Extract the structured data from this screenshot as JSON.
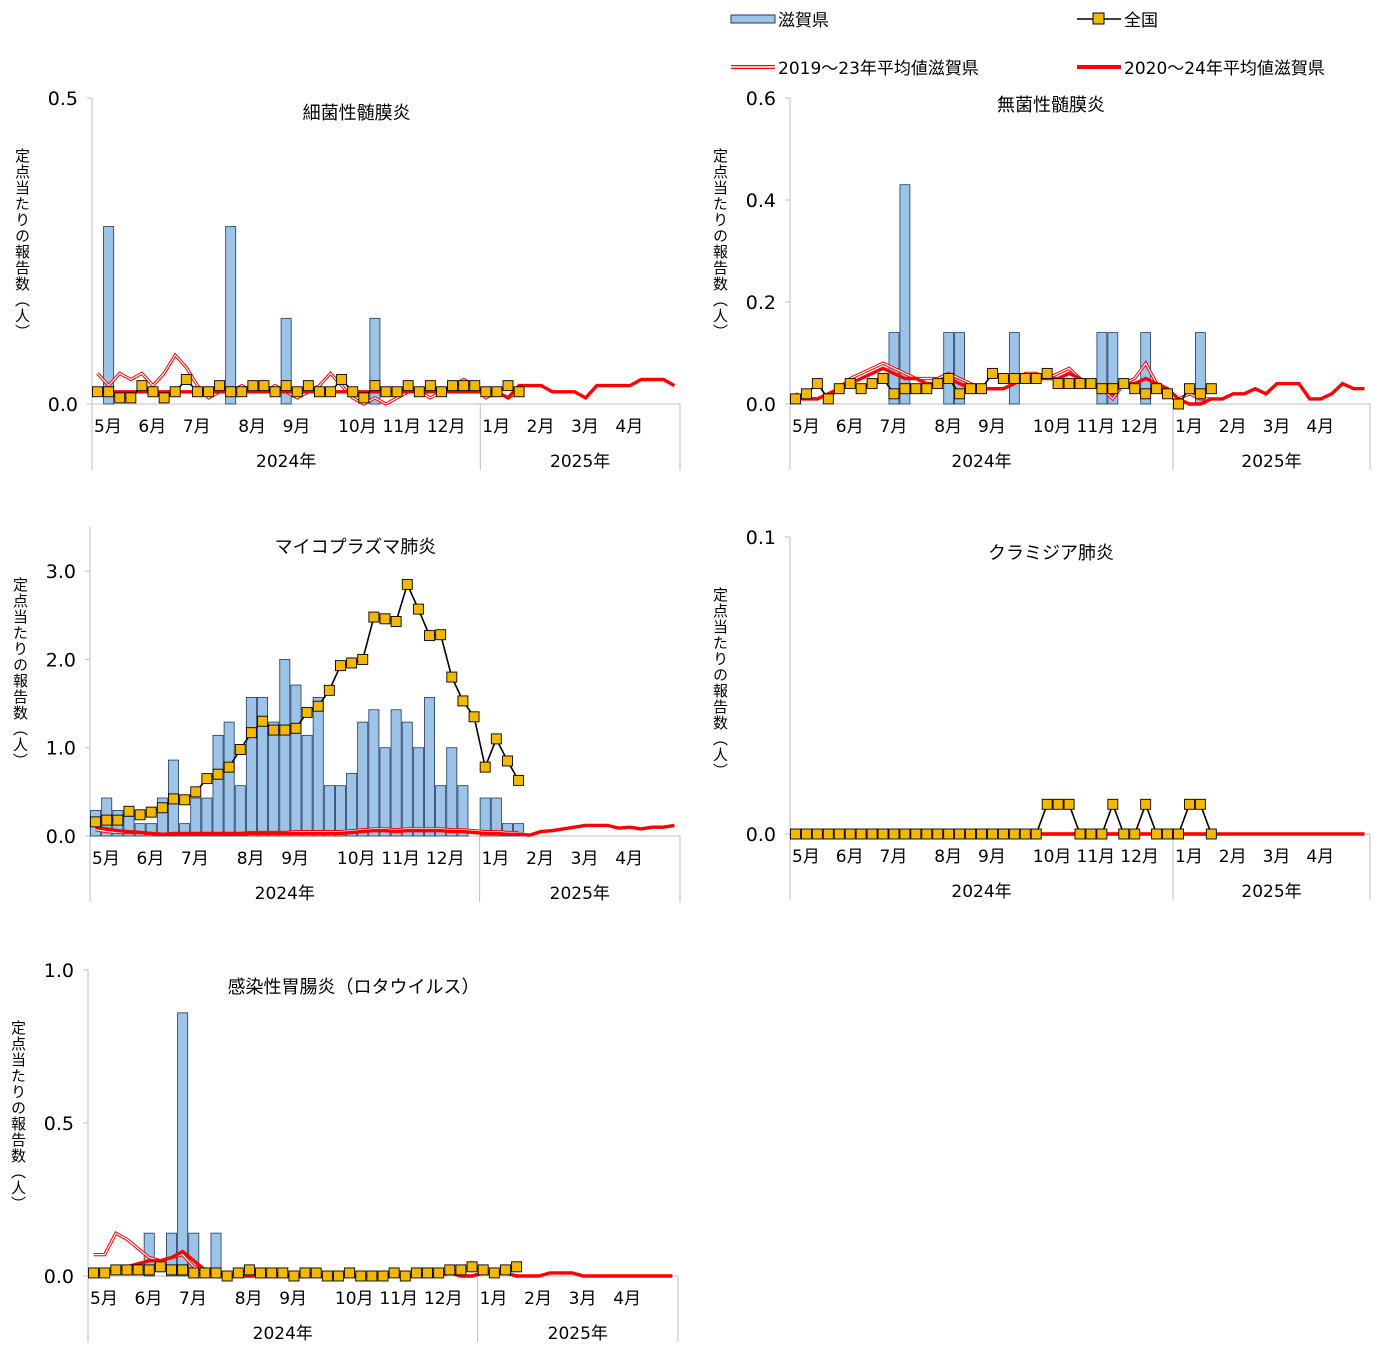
{
  "legend": {
    "items": [
      {
        "label": "滋賀県",
        "kind": "bar"
      },
      {
        "label": "全国",
        "kind": "marker"
      },
      {
        "label": "2019～23年平均値滋賀県",
        "kind": "double"
      },
      {
        "label": "2020～24年平均値滋賀県",
        "kind": "thick"
      }
    ]
  },
  "colors": {
    "bar_fill": "#9dc3e6",
    "bar_stroke": "#1f3864",
    "national_marker": "#f5b800",
    "national_line": "#000000",
    "avg_red": "#ff0000",
    "axis": "#bfbfbf"
  },
  "chart_data": [
    {
      "type": "bar",
      "title": "細菌性髄膜炎",
      "ylabel": "定点当たりの報告数（人）",
      "ylim": [
        0,
        0.5
      ],
      "yticks": [
        "0.0",
        "0.5"
      ],
      "month_labels": [
        "5月",
        "6月",
        "7月",
        "8月",
        "9月",
        "10月",
        "11月",
        "12月",
        "1月",
        "2月",
        "3月",
        "4月"
      ],
      "year_labels": [
        "2024年",
        "2025年"
      ],
      "shiga": [
        0,
        0.29,
        0,
        0,
        0,
        0,
        0,
        0,
        0,
        0,
        0,
        0,
        0.29,
        0,
        0,
        0,
        0,
        0.14,
        0,
        0,
        0,
        0,
        0,
        0,
        0,
        0.14,
        0,
        0,
        0,
        0,
        0,
        0,
        0,
        0,
        0,
        0,
        0,
        0,
        0,
        0,
        0,
        0,
        0,
        0,
        0,
        0,
        0,
        0,
        0,
        0,
        0,
        0,
        0
      ],
      "national": [
        0.02,
        0.02,
        0.01,
        0.01,
        0.03,
        0.02,
        0.01,
        0.02,
        0.04,
        0.02,
        0.02,
        0.03,
        0.02,
        0.02,
        0.03,
        0.03,
        0.02,
        0.03,
        0.02,
        0.03,
        0.02,
        0.02,
        0.04,
        0.02,
        0.01,
        0.03,
        0.02,
        0.02,
        0.03,
        0.02,
        0.03,
        0.02,
        0.03,
        0.03,
        0.03,
        0.02,
        0.02,
        0.03,
        0.02
      ],
      "avg1923": [
        0.05,
        0.03,
        0.05,
        0.04,
        0.05,
        0.03,
        0.05,
        0.08,
        0.06,
        0.03,
        0.01,
        0.02,
        0.02,
        0.03,
        0.02,
        0.02,
        0.03,
        0.02,
        0.01,
        0.02,
        0.03,
        0.05,
        0.03,
        0.01,
        0.0,
        0.01,
        0.0,
        0.01,
        0.02,
        0.02,
        0.01,
        0.02,
        0.03,
        0.04,
        0.03,
        0.01,
        0.02,
        0.01,
        0.02
      ],
      "avg2024": [
        0.02,
        0.02,
        0.02,
        0.02,
        0.02,
        0.02,
        0.02,
        0.02,
        0.02,
        0.02,
        0.02,
        0.02,
        0.02,
        0.02,
        0.02,
        0.02,
        0.02,
        0.02,
        0.02,
        0.02,
        0.02,
        0.02,
        0.02,
        0.02,
        0.02,
        0.02,
        0.02,
        0.02,
        0.02,
        0.02,
        0.02,
        0.02,
        0.02,
        0.02,
        0.02,
        0.02,
        0.02,
        0.01,
        0.03,
        0.03,
        0.03,
        0.02,
        0.02,
        0.02,
        0.01,
        0.03,
        0.03,
        0.03,
        0.03,
        0.04,
        0.04,
        0.04,
        0.03
      ]
    },
    {
      "type": "bar",
      "title": "無菌性髄膜炎",
      "ylabel": "定点当たりの報告数（人）",
      "ylim": [
        0,
        0.6
      ],
      "yticks": [
        "0.0",
        "0.2",
        "0.4",
        "0.6"
      ],
      "month_labels": [
        "5月",
        "6月",
        "7月",
        "8月",
        "9月",
        "10月",
        "11月",
        "12月",
        "1月",
        "2月",
        "3月",
        "4月"
      ],
      "year_labels": [
        "2024年",
        "2025年"
      ],
      "shiga": [
        0,
        0,
        0,
        0,
        0,
        0,
        0,
        0,
        0,
        0.14,
        0.43,
        0,
        0,
        0,
        0.14,
        0.14,
        0,
        0,
        0,
        0,
        0.14,
        0,
        0,
        0,
        0,
        0,
        0,
        0,
        0.14,
        0.14,
        0,
        0,
        0.14,
        0,
        0,
        0,
        0,
        0.14,
        0,
        0,
        0,
        0,
        0,
        0,
        0,
        0,
        0,
        0,
        0,
        0,
        0,
        0,
        0
      ],
      "national": [
        0.01,
        0.02,
        0.04,
        0.01,
        0.03,
        0.04,
        0.03,
        0.04,
        0.05,
        0.02,
        0.03,
        0.03,
        0.03,
        0.04,
        0.05,
        0.02,
        0.03,
        0.03,
        0.06,
        0.05,
        0.05,
        0.05,
        0.05,
        0.06,
        0.04,
        0.04,
        0.04,
        0.04,
        0.03,
        0.03,
        0.04,
        0.03,
        0.02,
        0.03,
        0.02,
        0.0,
        0.03,
        0.02,
        0.03
      ],
      "avg1923": [
        0.02,
        0.01,
        0.01,
        0.02,
        0.03,
        0.05,
        0.06,
        0.07,
        0.08,
        0.07,
        0.06,
        0.05,
        0.05,
        0.05,
        0.06,
        0.05,
        0.04,
        0.03,
        0.03,
        0.03,
        0.04,
        0.06,
        0.06,
        0.05,
        0.06,
        0.07,
        0.05,
        0.04,
        0.03,
        0.01,
        0.04,
        0.05,
        0.08,
        0.04,
        0.03,
        0.01,
        0.02,
        0.01,
        0.01
      ],
      "avg2024": [
        0.01,
        0.01,
        0.01,
        0.02,
        0.03,
        0.04,
        0.05,
        0.06,
        0.07,
        0.06,
        0.05,
        0.05,
        0.04,
        0.04,
        0.05,
        0.04,
        0.03,
        0.03,
        0.03,
        0.03,
        0.04,
        0.05,
        0.05,
        0.05,
        0.05,
        0.06,
        0.05,
        0.04,
        0.03,
        0.02,
        0.04,
        0.04,
        0.05,
        0.04,
        0.03,
        0.01,
        0.0,
        0.0,
        0.01,
        0.01,
        0.02,
        0.02,
        0.03,
        0.02,
        0.04,
        0.04,
        0.04,
        0.01,
        0.01,
        0.02,
        0.04,
        0.03,
        0.03
      ]
    },
    {
      "type": "bar",
      "title": "マイコプラズマ肺炎",
      "ylabel": "定点当たりの報告数（人）",
      "ylim": [
        0,
        3.5
      ],
      "yticks": [
        "0.0",
        "1.0",
        "2.0",
        "3.0"
      ],
      "month_labels": [
        "5月",
        "6月",
        "7月",
        "8月",
        "9月",
        "10月",
        "11月",
        "12月",
        "1月",
        "2月",
        "3月",
        "4月"
      ],
      "year_labels": [
        "2024年",
        "2025年"
      ],
      "shiga": [
        0.29,
        0.43,
        0.29,
        0.29,
        0.14,
        0.14,
        0.43,
        0.86,
        0.14,
        0.43,
        0.43,
        1.14,
        1.29,
        0.57,
        1.57,
        1.57,
        1.29,
        2.0,
        1.71,
        1.14,
        1.57,
        0.57,
        0.57,
        0.71,
        1.29,
        1.43,
        1.0,
        1.43,
        1.29,
        1.0,
        1.57,
        0.57,
        1.0,
        0.57,
        0.0,
        0.43,
        0.43,
        0.14,
        0.14,
        0,
        0,
        0,
        0,
        0,
        0,
        0,
        0,
        0,
        0,
        0,
        0,
        0,
        0
      ],
      "national": [
        0.16,
        0.18,
        0.18,
        0.28,
        0.24,
        0.27,
        0.32,
        0.42,
        0.41,
        0.5,
        0.65,
        0.7,
        0.78,
        0.98,
        1.17,
        1.3,
        1.2,
        1.2,
        1.22,
        1.4,
        1.47,
        1.65,
        1.93,
        1.96,
        2.0,
        2.48,
        2.46,
        2.43,
        2.85,
        2.57,
        2.27,
        2.28,
        1.8,
        1.53,
        1.35,
        0.78,
        1.1,
        0.85,
        0.63
      ],
      "avg1923": [
        0.07,
        0.05,
        0.04,
        0.04,
        0.04,
        0.03,
        0.02,
        0.03,
        0.03,
        0.03,
        0.03,
        0.03,
        0.03,
        0.03,
        0.04,
        0.04,
        0.04,
        0.04,
        0.05,
        0.05,
        0.05,
        0.05,
        0.05,
        0.06,
        0.07,
        0.08,
        0.08,
        0.07,
        0.08,
        0.08,
        0.08,
        0.08,
        0.07,
        0.07,
        0.06,
        0.05,
        0.05,
        0.04,
        0.04
      ],
      "avg2024": [
        0.1,
        0.08,
        0.06,
        0.05,
        0.04,
        0.03,
        0.02,
        0.02,
        0.02,
        0.02,
        0.02,
        0.02,
        0.02,
        0.02,
        0.03,
        0.03,
        0.03,
        0.03,
        0.03,
        0.03,
        0.03,
        0.03,
        0.03,
        0.04,
        0.05,
        0.06,
        0.06,
        0.05,
        0.06,
        0.06,
        0.06,
        0.06,
        0.05,
        0.05,
        0.04,
        0.03,
        0.03,
        0.02,
        0.02,
        0.01,
        0.05,
        0.06,
        0.08,
        0.1,
        0.12,
        0.12,
        0.12,
        0.09,
        0.1,
        0.08,
        0.1,
        0.1,
        0.12
      ]
    },
    {
      "type": "bar",
      "title": "クラミジア肺炎",
      "ylabel": "定点当たりの報告数（人）",
      "ylim": [
        0,
        0.1
      ],
      "yticks": [
        "0.0",
        "0.1"
      ],
      "month_labels": [
        "5月",
        "6月",
        "7月",
        "8月",
        "9月",
        "10月",
        "11月",
        "12月",
        "1月",
        "2月",
        "3月",
        "4月"
      ],
      "year_labels": [
        "2024年",
        "2025年"
      ],
      "shiga": [
        0,
        0,
        0,
        0,
        0,
        0,
        0,
        0,
        0,
        0,
        0,
        0,
        0,
        0,
        0,
        0,
        0,
        0,
        0,
        0,
        0,
        0,
        0,
        0,
        0,
        0,
        0,
        0,
        0,
        0,
        0,
        0,
        0,
        0,
        0,
        0,
        0,
        0,
        0,
        0,
        0,
        0,
        0,
        0,
        0,
        0,
        0,
        0,
        0,
        0,
        0,
        0,
        0
      ],
      "national": [
        0,
        0,
        0,
        0,
        0,
        0,
        0,
        0,
        0,
        0,
        0,
        0,
        0,
        0,
        0,
        0,
        0,
        0,
        0,
        0,
        0,
        0,
        0,
        0.01,
        0.01,
        0.01,
        0,
        0,
        0,
        0.01,
        0,
        0,
        0.01,
        0,
        0,
        0,
        0.01,
        0.01,
        0
      ],
      "avg1923": [
        0,
        0,
        0,
        0,
        0,
        0,
        0,
        0,
        0,
        0,
        0,
        0,
        0,
        0,
        0,
        0,
        0,
        0,
        0,
        0,
        0,
        0,
        0,
        0,
        0,
        0,
        0,
        0,
        0,
        0,
        0,
        0,
        0,
        0,
        0,
        0,
        0,
        0,
        0
      ],
      "avg2024": [
        0,
        0,
        0,
        0,
        0,
        0,
        0,
        0,
        0,
        0,
        0,
        0,
        0,
        0,
        0,
        0,
        0,
        0,
        0,
        0,
        0,
        0,
        0,
        0,
        0,
        0,
        0,
        0,
        0,
        0,
        0,
        0,
        0,
        0,
        0,
        0,
        0,
        0,
        0,
        0,
        0,
        0,
        0,
        0,
        0,
        0,
        0,
        0,
        0,
        0,
        0,
        0,
        0
      ]
    },
    {
      "type": "bar",
      "title": "感染性胃腸炎（ロタウイルス）",
      "ylabel": "定点当たりの報告数（人）",
      "ylim": [
        0,
        1.0
      ],
      "yticks": [
        "0.0",
        "0.5",
        "1.0"
      ],
      "month_labels": [
        "5月",
        "6月",
        "7月",
        "8月",
        "9月",
        "10月",
        "11月",
        "12月",
        "1月",
        "2月",
        "3月",
        "4月"
      ],
      "year_labels": [
        "2024年",
        "2025年"
      ],
      "shiga": [
        0,
        0,
        0,
        0,
        0,
        0.14,
        0,
        0.14,
        0.86,
        0.14,
        0,
        0.14,
        0,
        0,
        0,
        0,
        0,
        0,
        0,
        0,
        0,
        0,
        0,
        0,
        0,
        0,
        0,
        0,
        0,
        0,
        0,
        0,
        0,
        0,
        0,
        0,
        0,
        0,
        0,
        0,
        0,
        0,
        0,
        0,
        0,
        0,
        0,
        0,
        0,
        0,
        0,
        0,
        0
      ],
      "national": [
        0.01,
        0.01,
        0.02,
        0.02,
        0.02,
        0.02,
        0.03,
        0.02,
        0.02,
        0.01,
        0.01,
        0.01,
        0.0,
        0.01,
        0.02,
        0.01,
        0.01,
        0.01,
        0.0,
        0.01,
        0.01,
        0.0,
        0.0,
        0.01,
        0.0,
        0.0,
        0.0,
        0.01,
        0.0,
        0.01,
        0.01,
        0.01,
        0.02,
        0.02,
        0.03,
        0.02,
        0.01,
        0.02,
        0.03
      ],
      "avg1923": [
        0.07,
        0.07,
        0.14,
        0.12,
        0.09,
        0.06,
        0.05,
        0.06,
        0.07,
        0.03,
        0.02,
        0.01,
        0.0,
        0.0,
        0.0,
        0.0,
        0.0,
        0.0,
        0.0,
        0.0,
        0.0,
        0.0,
        0.0,
        0.0,
        0.0,
        0.0,
        0.0,
        0.0,
        0.0,
        0.0,
        0.0,
        0.0,
        0.01,
        0.0,
        0.0,
        0.01,
        0.01,
        0.01,
        0.0
      ],
      "avg2024": [
        0.01,
        0.01,
        0.02,
        0.03,
        0.04,
        0.05,
        0.05,
        0.06,
        0.08,
        0.05,
        0.02,
        0.01,
        0.0,
        0.0,
        0.0,
        0.0,
        0.0,
        0.0,
        0.0,
        0.0,
        0.0,
        0.0,
        0.0,
        0.0,
        0.0,
        0.0,
        0.0,
        0.0,
        0.0,
        0.0,
        0.0,
        0.0,
        0.01,
        0.0,
        0.0,
        0.01,
        0.01,
        0.01,
        0.0,
        0.0,
        0.0,
        0.01,
        0.01,
        0.01,
        0.0,
        0.0,
        0.0,
        0.0,
        0.0,
        0.0,
        0.0,
        0.0,
        0.0
      ]
    }
  ]
}
